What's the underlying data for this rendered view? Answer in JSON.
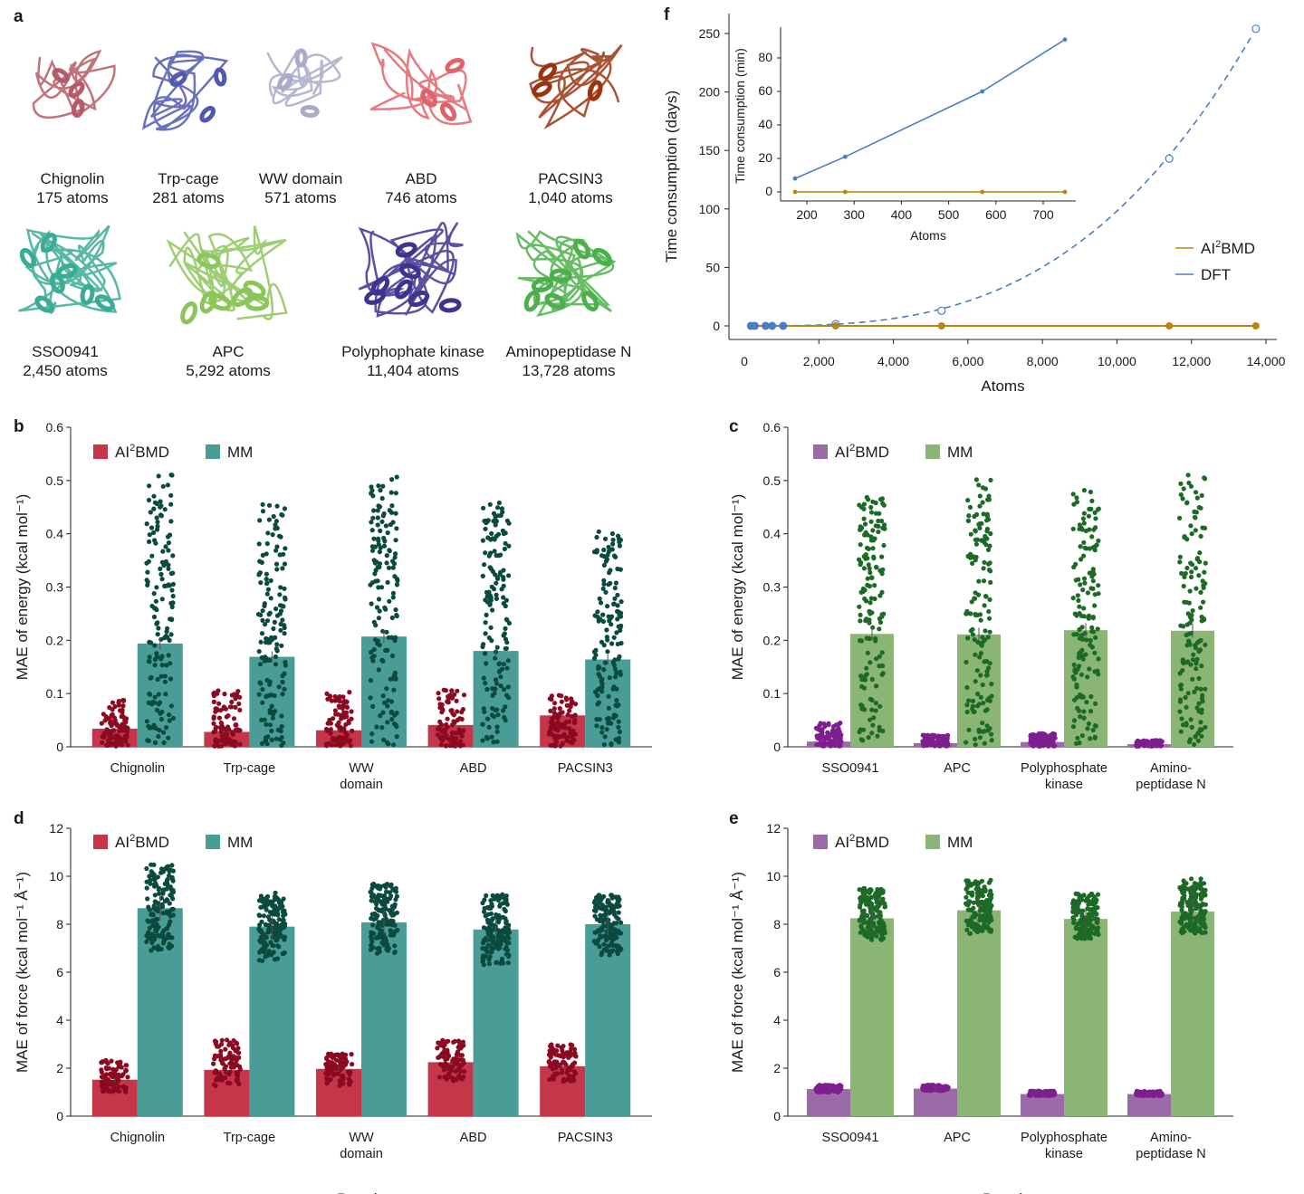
{
  "panel_a": {
    "label": "a",
    "structures": [
      {
        "name": "Chignolin",
        "atoms": "175 atoms",
        "color": "#b55a66"
      },
      {
        "name": "Trp-cage",
        "atoms": "281 atoms",
        "color": "#5058b0"
      },
      {
        "name": "WW domain",
        "atoms": "571 atoms",
        "color": "#a8aac8"
      },
      {
        "name": "ABD",
        "atoms": "746 atoms",
        "color": "#e0636c"
      },
      {
        "name": "PACSIN3",
        "atoms": "1,040 atoms",
        "color": "#9a3410"
      },
      {
        "name": "SSO0941",
        "atoms": "2,450 atoms",
        "color": "#3aab95"
      },
      {
        "name": "APC",
        "atoms": "5,292 atoms",
        "color": "#8cc55a"
      },
      {
        "name": "Polyphophate kinase",
        "atoms": "11,404 atoms",
        "color": "#3d3490"
      },
      {
        "name": "Aminopeptidase N",
        "atoms": "13,728 atoms",
        "color": "#4cb04a"
      }
    ]
  },
  "chart_data": [
    {
      "panel": "b",
      "type": "bar",
      "ylabel": "MAE of energy (kcal mol⁻¹)",
      "xlabel": "",
      "ylim": [
        0,
        0.6
      ],
      "yticks": [
        "0",
        "0.1",
        "0.2",
        "0.3",
        "0.4",
        "0.5",
        "0.6"
      ],
      "categories": [
        "Chignolin",
        "Trp-cage",
        "WW domain",
        "ABD",
        "PACSIN3"
      ],
      "category_lines": [
        [
          "Chignolin"
        ],
        [
          "Trp-cage"
        ],
        [
          "WW",
          "domain"
        ],
        [
          "ABD"
        ],
        [
          "PACSIN3"
        ]
      ],
      "series": [
        {
          "name": "AI2BMD",
          "values": [
            0.034,
            0.028,
            0.031,
            0.041,
            0.059
          ],
          "spread_max": [
            0.088,
            0.106,
            0.105,
            0.107,
            0.098
          ],
          "color": "#c5364b",
          "dot_color": "#8b0a22"
        },
        {
          "name": "MM",
          "values": [
            0.194,
            0.169,
            0.207,
            0.18,
            0.164
          ],
          "spread_max": [
            0.516,
            0.464,
            0.507,
            0.459,
            0.406
          ],
          "color": "#4a9c97",
          "dot_color": "#0b4a3e"
        }
      ],
      "legend": {
        "s1": "AI",
        "s1sup": "2",
        "s1end": "BMD",
        "s2": "MM"
      }
    },
    {
      "panel": "c",
      "type": "bar",
      "ylabel": "MAE of energy (kcal mol⁻¹)",
      "xlabel": "",
      "ylim": [
        0,
        0.6
      ],
      "yticks": [
        "0",
        "0.1",
        "0.2",
        "0.3",
        "0.4",
        "0.5",
        "0.6"
      ],
      "categories": [
        "SSO0941",
        "APC",
        "Polyphosphate kinase",
        "Amino-peptidase N"
      ],
      "category_lines": [
        [
          "SSO0941"
        ],
        [
          "APC"
        ],
        [
          "Polyphosphate",
          "kinase"
        ],
        [
          "Amino-",
          "peptidase N"
        ]
      ],
      "series": [
        {
          "name": "AI2BMD",
          "values": [
            0.01,
            0.007,
            0.009,
            0.005
          ],
          "spread_max": [
            0.045,
            0.022,
            0.025,
            0.012
          ],
          "color": "#9c6aa8",
          "dot_color": "#7e1f8f"
        },
        {
          "name": "MM",
          "values": [
            0.212,
            0.211,
            0.219,
            0.218
          ],
          "spread_max": [
            0.472,
            0.506,
            0.482,
            0.512
          ],
          "color": "#8ab575",
          "dot_color": "#1d6a26"
        }
      ],
      "legend": {
        "s1": "AI",
        "s1sup": "2",
        "s1end": "BMD",
        "s2": "MM"
      }
    },
    {
      "panel": "d",
      "type": "bar",
      "ylabel": "MAE of force (kcal mol⁻¹ Å⁻¹)",
      "xlabel": "Protein",
      "ylim": [
        0,
        12
      ],
      "yticks": [
        "0",
        "2",
        "4",
        "6",
        "8",
        "10",
        "12"
      ],
      "categories": [
        "Chignolin",
        "Trp-cage",
        "WW domain",
        "ABD",
        "PACSIN3"
      ],
      "category_lines": [
        [
          "Chignolin"
        ],
        [
          "Trp-cage"
        ],
        [
          "WW",
          "domain"
        ],
        [
          "ABD"
        ],
        [
          "PACSIN3"
        ]
      ],
      "series": [
        {
          "name": "AI2BMD",
          "values": [
            1.52,
            1.93,
            1.97,
            2.25,
            2.08
          ],
          "spread_min": [
            1.0,
            1.25,
            1.25,
            1.45,
            1.45
          ],
          "spread_max": [
            2.35,
            3.2,
            2.6,
            3.2,
            3.0
          ],
          "color": "#c5364b",
          "dot_color": "#8b0a22"
        },
        {
          "name": "MM",
          "values": [
            8.67,
            7.9,
            8.08,
            7.78,
            8.0
          ],
          "spread_min": [
            6.9,
            6.45,
            6.75,
            6.3,
            6.7
          ],
          "spread_max": [
            10.5,
            9.35,
            9.7,
            9.25,
            9.25
          ],
          "color": "#4a9c97",
          "dot_color": "#0b4a3e"
        }
      ],
      "legend": {
        "s1": "AI",
        "s1sup": "2",
        "s1end": "BMD",
        "s2": "MM"
      }
    },
    {
      "panel": "e",
      "type": "bar",
      "ylabel": "MAE of force (kcal mol⁻¹ Å⁻¹)",
      "xlabel": "Proteins",
      "ylim": [
        0,
        12
      ],
      "yticks": [
        "0",
        "2",
        "4",
        "6",
        "8",
        "10",
        "12"
      ],
      "categories": [
        "SSO0941",
        "APC",
        "Polyphosphate kinase",
        "Amino-peptidase N"
      ],
      "category_lines": [
        [
          "SSO0941"
        ],
        [
          "APC"
        ],
        [
          "Polyphosphate",
          "kinase"
        ],
        [
          "Amino-",
          "peptidase N"
        ]
      ],
      "series": [
        {
          "name": "AI2BMD",
          "values": [
            1.13,
            1.15,
            0.92,
            0.92
          ],
          "spread_min": [
            1.0,
            1.05,
            0.85,
            0.85
          ],
          "spread_max": [
            1.3,
            1.3,
            1.05,
            1.05
          ],
          "color": "#9c6aa8",
          "dot_color": "#7e1f8f"
        },
        {
          "name": "MM",
          "values": [
            8.25,
            8.58,
            8.22,
            8.53
          ],
          "spread_min": [
            7.35,
            7.6,
            7.4,
            7.6
          ],
          "spread_max": [
            9.5,
            9.9,
            9.3,
            9.9
          ],
          "color": "#8ab575",
          "dot_color": "#1d6a26"
        }
      ],
      "legend": {
        "s1": "AI",
        "s1sup": "2",
        "s1end": "BMD",
        "s2": "MM"
      }
    },
    {
      "panel": "f",
      "type": "line",
      "xlabel": "Atoms",
      "ylabel": "Time consumption (days)",
      "xlim": [
        0,
        14000
      ],
      "ylim": [
        0,
        250
      ],
      "xticks": [
        {
          "v": 2000,
          "t": "2,000"
        },
        {
          "v": 4000,
          "t": "4,000"
        },
        {
          "v": 6000,
          "t": "6,000"
        },
        {
          "v": 8000,
          "t": "8,000"
        },
        {
          "v": 10000,
          "t": "10,000"
        },
        {
          "v": 12000,
          "t": "12,000"
        },
        {
          "v": 14000,
          "t": "14,000"
        }
      ],
      "yticks": [
        {
          "v": 0,
          "t": "0"
        },
        {
          "v": 50,
          "t": "50"
        },
        {
          "v": 100,
          "t": "100"
        },
        {
          "v": 150,
          "t": "150"
        },
        {
          "v": 200,
          "t": "200"
        },
        {
          "v": 250,
          "t": "250"
        }
      ],
      "series": [
        {
          "name": "AI2BMD",
          "color": "#b8860b",
          "x": [
            175,
            281,
            571,
            746,
            1040,
            2450,
            5292,
            11404,
            13728
          ],
          "y": [
            0.05,
            0.05,
            0.05,
            0.05,
            0.05,
            0.05,
            0.05,
            0.05,
            0.05
          ]
        },
        {
          "name": "DFT",
          "color": "#4a7ec4",
          "x": [
            175,
            281,
            571,
            746,
            1040
          ],
          "y": [
            0.005,
            0.015,
            0.04,
            0.06,
            0.12
          ],
          "extrapolated_x": [
            2450,
            5292,
            11404,
            13728
          ],
          "extrapolated_y": [
            1.5,
            13,
            143,
            254
          ]
        }
      ],
      "legend": {
        "s1": "AI",
        "s1sup": "2",
        "s1end": "BMD",
        "s2": "DFT"
      },
      "inset": {
        "xlabel": "Atoms",
        "ylabel": "Time consumption (min)",
        "xlim": [
          150,
          770
        ],
        "ylim": [
          -5,
          92
        ],
        "xticks": [
          200,
          300,
          400,
          500,
          600,
          700
        ],
        "yticks": [
          0,
          20,
          40,
          60,
          80
        ],
        "series": [
          {
            "name": "DFT",
            "color": "#4a7ec4",
            "x": [
              175,
              281,
              571,
              746
            ],
            "y": [
              8,
              21,
              60,
              91
            ]
          },
          {
            "name": "AI2BMD",
            "color": "#b8860b",
            "x": [
              175,
              281,
              571,
              746
            ],
            "y": [
              0,
              0,
              0,
              0
            ]
          }
        ]
      }
    }
  ]
}
